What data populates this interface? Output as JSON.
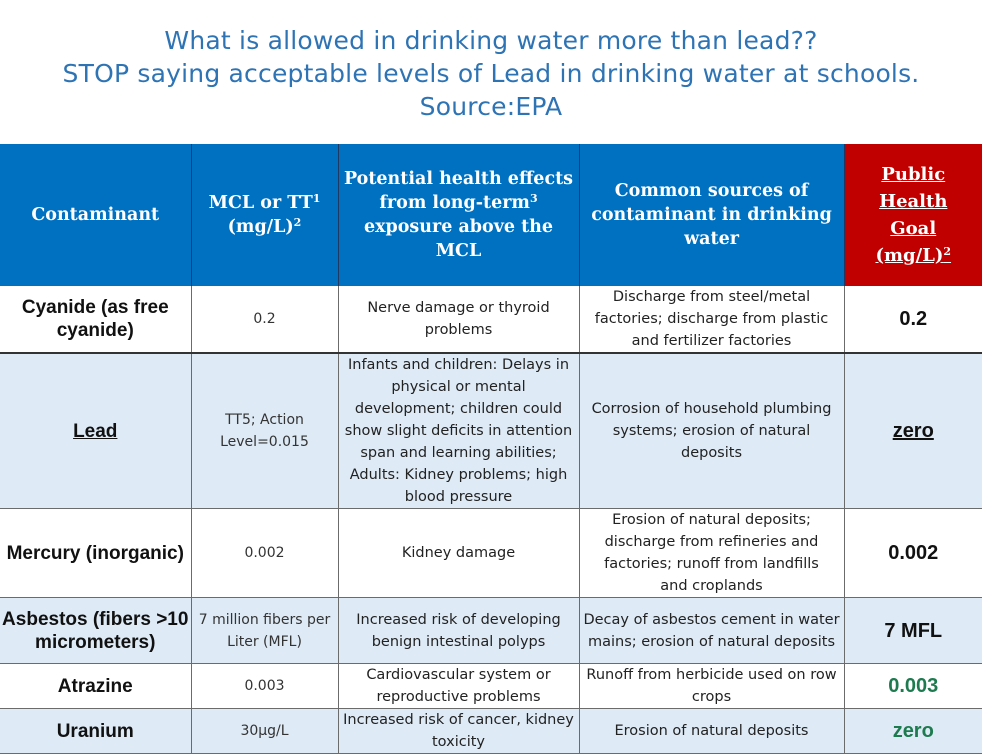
{
  "title": {
    "line1": "What is allowed in drinking water more than lead??",
    "line2": "STOP saying acceptable levels of Lead in drinking water at schools.",
    "line3": "Source:EPA"
  },
  "headers": {
    "contaminant": "Contaminant",
    "mcl_a": "MCL or TT",
    "mcl_sup1": "1",
    "mcl_b": "(mg/L)",
    "mcl_sup2": "2",
    "health_a": "Potential health effects from long-term",
    "health_sup": "3",
    "health_b": "exposure above the MCL",
    "sources": "Common sources of contaminant in drinking water",
    "goal_a": "Public Health Goal",
    "goal_b": "(mg/L)",
    "goal_sup": "2"
  },
  "rows": [
    {
      "name": "Cyanide (as free cyanide)",
      "mcl": "0.2",
      "health": "Nerve damage or thyroid problems",
      "sources": "Discharge from steel/metal factories; discharge from plastic and fertilizer factories",
      "goal": "0.2"
    },
    {
      "name": "Lead",
      "mcl": "TT5; Action Level=0.015",
      "health": "Infants and children: Delays in physical or mental development; children could show slight deficits in attention span and learning abilities; Adults: Kidney problems; high blood pressure",
      "sources": "Corrosion of household plumbing systems; erosion of natural deposits",
      "goal": "zero"
    },
    {
      "name": "Mercury (inorganic)",
      "mcl": "0.002",
      "health": "Kidney damage",
      "sources": "Erosion of natural deposits; discharge from refineries and factories; runoff from landfills and croplands",
      "goal": "0.002"
    },
    {
      "name": "Asbestos (fibers >10 micrometers)",
      "mcl": "7 million fibers per Liter (MFL)",
      "health": "Increased risk of developing benign intestinal polyps",
      "sources": "Decay of asbestos cement in water mains; erosion of natural deposits",
      "goal": "7 MFL"
    },
    {
      "name": "Atrazine",
      "mcl": "0.003",
      "health": "Cardiovascular system or reproductive problems",
      "sources": "Runoff from herbicide used on row crops",
      "goal": "0.003"
    },
    {
      "name": "Uranium",
      "mcl": "30µg/L",
      "health": "Increased risk of cancer, kidney toxicity",
      "sources": "Erosion of natural deposits",
      "goal": "zero"
    }
  ]
}
